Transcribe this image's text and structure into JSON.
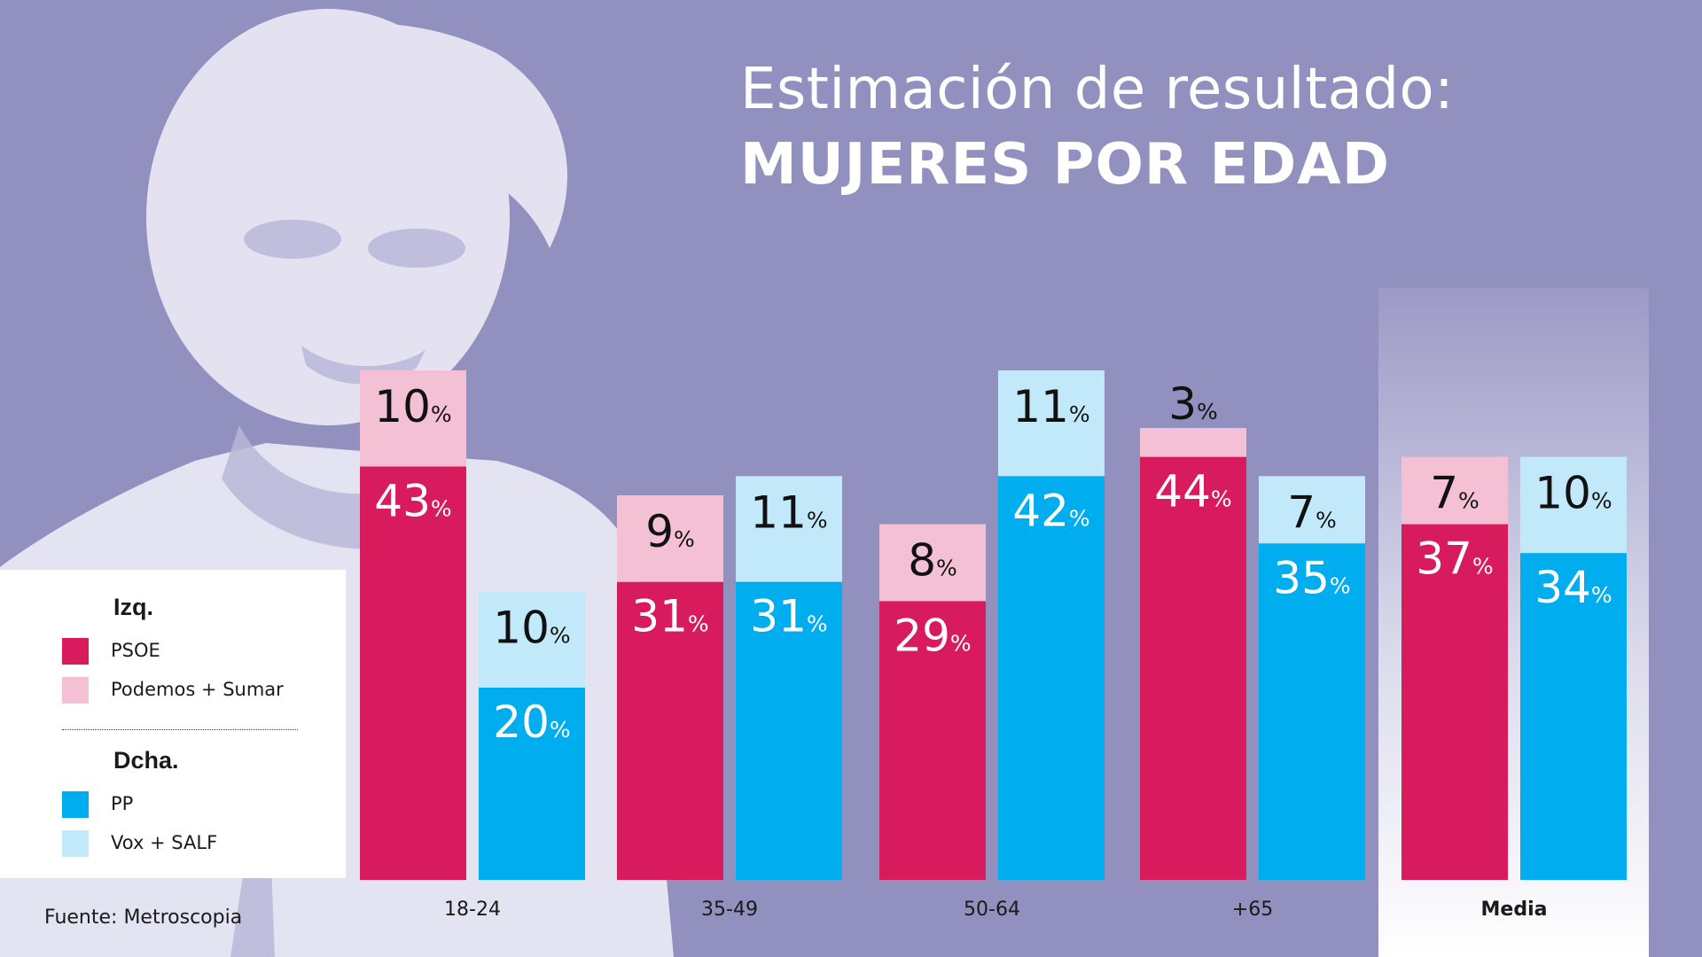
{
  "title": {
    "line1": "Estimación de resultado:",
    "line2": "MUJERES POR EDAD"
  },
  "source": "Fuente: Metroscopia",
  "legend": {
    "left_title": "Izq.",
    "right_title": "Dcha.",
    "items": [
      {
        "label": "PSOE",
        "color": "#d81b5c"
      },
      {
        "label": "Podemos + Sumar",
        "color": "#f4c0d3"
      },
      {
        "label": "PP",
        "color": "#00adee"
      },
      {
        "label": "Vox + SALF",
        "color": "#c2e9f9"
      }
    ]
  },
  "colors": {
    "background": "#9290bf",
    "psoe": "#d81b5c",
    "podemos_sumar": "#f4c0d3",
    "pp": "#00adee",
    "vox_salf": "#c2e9f9"
  },
  "chart_data": {
    "type": "bar",
    "stacked": true,
    "grouped": true,
    "value_suffix": "%",
    "categories": [
      "18-24",
      "35-49",
      "50-64",
      "+65",
      "Media"
    ],
    "highlight_category": "Media",
    "groups": [
      {
        "name": "Izq.",
        "series": [
          {
            "name": "PSOE",
            "values": [
              43,
              31,
              29,
              44,
              37
            ]
          },
          {
            "name": "Podemos + Sumar",
            "values": [
              10,
              9,
              8,
              3,
              7
            ]
          }
        ]
      },
      {
        "name": "Dcha.",
        "series": [
          {
            "name": "PP",
            "values": [
              20,
              31,
              42,
              35,
              34
            ]
          },
          {
            "name": "Vox + SALF",
            "values": [
              10,
              11,
              11,
              7,
              10
            ]
          }
        ]
      }
    ],
    "ylim": [
      0,
      60
    ],
    "grid": false,
    "legend_position": "bottom-left"
  }
}
